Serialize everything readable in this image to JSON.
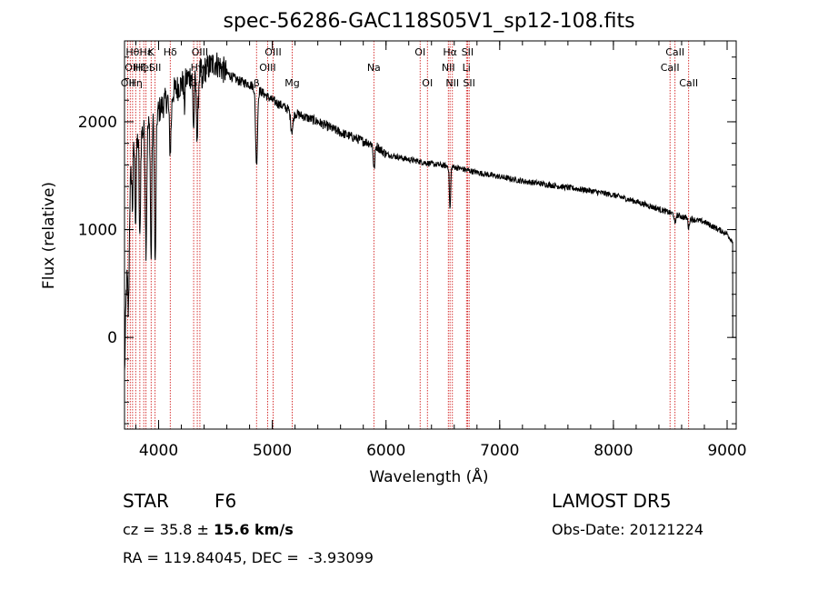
{
  "chart_data": {
    "type": "line",
    "title": "spec-56286-GAC118S05V1_sp12-108.fits",
    "xlabel": "Wavelength (Å)",
    "ylabel": "Flux (relative)",
    "xlim": [
      3700,
      9080
    ],
    "ylim": [
      -850,
      2750
    ],
    "x_ticks": [
      4000,
      5000,
      6000,
      7000,
      8000,
      9000
    ],
    "y_ticks": [
      0,
      1000,
      2000
    ],
    "x_minor_step": 200,
    "y_minor_step": 200,
    "grid": false,
    "line_color": "#000000",
    "marker_color": "#cc0000",
    "spectrum_nodes": [
      {
        "x": 3700,
        "y": -350
      },
      {
        "x": 3715,
        "y": 400
      },
      {
        "x": 3730,
        "y": 800
      },
      {
        "x": 3750,
        "y": 1400
      },
      {
        "x": 3770,
        "y": 1700
      },
      {
        "x": 3800,
        "y": 1800
      },
      {
        "x": 3850,
        "y": 1900
      },
      {
        "x": 3900,
        "y": 1950
      },
      {
        "x": 3950,
        "y": 2000
      },
      {
        "x": 4000,
        "y": 2100
      },
      {
        "x": 4100,
        "y": 2250
      },
      {
        "x": 4200,
        "y": 2350
      },
      {
        "x": 4300,
        "y": 2450
      },
      {
        "x": 4400,
        "y": 2480
      },
      {
        "x": 4500,
        "y": 2550
      },
      {
        "x": 4600,
        "y": 2450
      },
      {
        "x": 4700,
        "y": 2380
      },
      {
        "x": 4800,
        "y": 2350
      },
      {
        "x": 4900,
        "y": 2280
      },
      {
        "x": 5000,
        "y": 2200
      },
      {
        "x": 5200,
        "y": 2080
      },
      {
        "x": 5400,
        "y": 2000
      },
      {
        "x": 5600,
        "y": 1900
      },
      {
        "x": 5800,
        "y": 1820
      },
      {
        "x": 5900,
        "y": 1790
      },
      {
        "x": 6000,
        "y": 1700
      },
      {
        "x": 6200,
        "y": 1650
      },
      {
        "x": 6400,
        "y": 1610
      },
      {
        "x": 6600,
        "y": 1580
      },
      {
        "x": 6800,
        "y": 1530
      },
      {
        "x": 7000,
        "y": 1490
      },
      {
        "x": 7200,
        "y": 1450
      },
      {
        "x": 7400,
        "y": 1420
      },
      {
        "x": 7600,
        "y": 1390
      },
      {
        "x": 7800,
        "y": 1360
      },
      {
        "x": 8000,
        "y": 1320
      },
      {
        "x": 8200,
        "y": 1260
      },
      {
        "x": 8400,
        "y": 1190
      },
      {
        "x": 8600,
        "y": 1120
      },
      {
        "x": 8800,
        "y": 1070
      },
      {
        "x": 9000,
        "y": 960
      },
      {
        "x": 9040,
        "y": 900
      }
    ],
    "spectrum_dips": [
      {
        "x": 3735,
        "depth": 700,
        "width": 8
      },
      {
        "x": 3770,
        "depth": 500,
        "width": 6
      },
      {
        "x": 3798,
        "depth": 700,
        "width": 7
      },
      {
        "x": 3835,
        "depth": 1000,
        "width": 8
      },
      {
        "x": 3889,
        "depth": 1100,
        "width": 9
      },
      {
        "x": 3934,
        "depth": 1300,
        "width": 8
      },
      {
        "x": 3970,
        "depth": 1400,
        "width": 9
      },
      {
        "x": 4102,
        "depth": 500,
        "width": 12
      },
      {
        "x": 4227,
        "depth": 250,
        "width": 6
      },
      {
        "x": 4308,
        "depth": 500,
        "width": 9
      },
      {
        "x": 4340,
        "depth": 600,
        "width": 11
      },
      {
        "x": 4384,
        "depth": 200,
        "width": 6
      },
      {
        "x": 4861,
        "depth": 700,
        "width": 12
      },
      {
        "x": 5172,
        "depth": 180,
        "width": 15
      },
      {
        "x": 5895,
        "depth": 230,
        "width": 10
      },
      {
        "x": 6563,
        "depth": 400,
        "width": 8
      },
      {
        "x": 8542,
        "depth": 100,
        "width": 8
      },
      {
        "x": 8662,
        "depth": 90,
        "width": 8
      }
    ],
    "end_drop": {
      "x": 9050,
      "y_low": 0
    },
    "lines": [
      {
        "x": 3727,
        "label": "OII",
        "row": 2
      },
      {
        "x": 3750,
        "label": "OI",
        "row": 1
      },
      {
        "x": 3771,
        "label": "Hθ",
        "row": 0
      },
      {
        "x": 3798,
        "label": "Hη",
        "row": 2
      },
      {
        "x": 3835,
        "label": "Hζ",
        "row": 1
      },
      {
        "x": 3869,
        "label": "HeI",
        "row": 1
      },
      {
        "x": 3889,
        "label": "Hε",
        "row": 0
      },
      {
        "x": 3934,
        "label": "K",
        "row": 0
      },
      {
        "x": 3969,
        "label": "SII",
        "row": 1
      },
      {
        "x": 4102,
        "label": "Hδ",
        "row": 0
      },
      {
        "x": 4308,
        "label": "G",
        "row": 2
      },
      {
        "x": 4340,
        "label": "Hγ",
        "row": 1
      },
      {
        "x": 4363,
        "label": "OIII",
        "row": 0
      },
      {
        "x": 4861,
        "label": "β",
        "row": 2
      },
      {
        "x": 4959,
        "label": "OIII",
        "row": 1
      },
      {
        "x": 5007,
        "label": "OIII",
        "row": 0
      },
      {
        "x": 5175,
        "label": "Mg",
        "row": 2
      },
      {
        "x": 5893,
        "label": "Na",
        "row": 1
      },
      {
        "x": 6300,
        "label": "OI",
        "row": 0
      },
      {
        "x": 6364,
        "label": "OI",
        "row": 2
      },
      {
        "x": 6548,
        "label": "NII",
        "row": 1
      },
      {
        "x": 6563,
        "label": "Hα",
        "row": 0
      },
      {
        "x": 6584,
        "label": "NII",
        "row": 2
      },
      {
        "x": 6708,
        "label": "Li",
        "row": 1
      },
      {
        "x": 6717,
        "label": "SII",
        "row": 0
      },
      {
        "x": 6731,
        "label": "SII",
        "row": 2
      },
      {
        "x": 8498,
        "label": "CaII",
        "row": 1
      },
      {
        "x": 8542,
        "label": "CaII",
        "row": 0
      },
      {
        "x": 8662,
        "label": "CaII",
        "row": 2
      }
    ]
  },
  "info": {
    "class_label": "STAR",
    "subclass": "F6",
    "survey": "LAMOST DR5",
    "cz_label": "cz = 35.8 ",
    "cz_pm": "± ",
    "cz_value": "15.6 km/s",
    "obs_date": "Obs-Date: 20121224",
    "coords": "RA = 119.84045, DEC =  -3.93099"
  }
}
